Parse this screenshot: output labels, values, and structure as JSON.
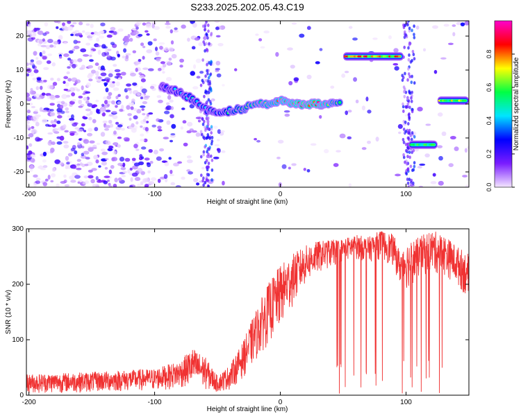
{
  "title": "S233.2025.202.05.43.C19",
  "chart_data": [
    {
      "type": "heatmap",
      "xlabel": "Height of straight line (km)",
      "ylabel": "Frequency (Hz)",
      "xlim": [
        -202,
        150
      ],
      "ylim": [
        -24.5,
        24.5
      ],
      "x_ticks": [
        -200,
        -100,
        0,
        100
      ],
      "y_ticks": [
        -20,
        -10,
        0,
        10,
        20
      ],
      "colorbar": {
        "label": "Normalized spectral amplitude",
        "ticks": [
          "0.0",
          "0.2",
          "0.4",
          "0.6",
          "0.8"
        ],
        "range": [
          0,
          1
        ],
        "colors": [
          "#f4e6ff",
          "#7a1cff",
          "#0000ff",
          "#00e5ff",
          "#00ff44",
          "#ffff00",
          "#ff0000",
          "#ff00cc"
        ]
      },
      "ridge": [
        {
          "x": -95,
          "y": 5,
          "v": 0.3
        },
        {
          "x": -88,
          "y": 4.5,
          "v": 0.35
        },
        {
          "x": -80,
          "y": 3.5,
          "v": 0.4
        },
        {
          "x": -70,
          "y": 1.5,
          "v": 0.45
        },
        {
          "x": -60,
          "y": -1.5,
          "v": 0.4
        },
        {
          "x": -50,
          "y": -3,
          "v": 0.45
        },
        {
          "x": -40,
          "y": -2,
          "v": 0.55
        },
        {
          "x": -30,
          "y": -1.5,
          "v": 0.6
        },
        {
          "x": -20,
          "y": 0,
          "v": 0.65
        },
        {
          "x": -10,
          "y": 0,
          "v": 0.7
        },
        {
          "x": 0,
          "y": 1,
          "v": 0.75
        },
        {
          "x": 10,
          "y": 0,
          "v": 0.8
        },
        {
          "x": 20,
          "y": 0,
          "v": 0.85
        },
        {
          "x": 30,
          "y": 0,
          "v": 0.85
        },
        {
          "x": 40,
          "y": 0,
          "v": 0.7
        },
        {
          "x": 48,
          "y": 0,
          "v": 0.6
        }
      ],
      "segments": [
        {
          "x0": 50,
          "x1": 98,
          "y": 14,
          "v": 0.8
        },
        {
          "x0": 102,
          "x1": 125,
          "y": -12,
          "v": 0.55
        },
        {
          "x0": 125,
          "x1": 150,
          "y": 1,
          "v": 0.65
        }
      ]
    },
    {
      "type": "line",
      "xlabel": "Height of straight line (km)",
      "ylabel": "SNR (10 * v/v)",
      "xlim": [
        -202,
        150
      ],
      "ylim": [
        0,
        300
      ],
      "x_ticks": [
        -200,
        -100,
        0,
        100
      ],
      "y_ticks": [
        0,
        100,
        200,
        300
      ],
      "color": "#f03232",
      "envelope": {
        "x": [
          -202,
          -150,
          -100,
          -80,
          -70,
          -60,
          -50,
          -40,
          -30,
          -20,
          -10,
          0,
          10,
          20,
          30,
          40,
          50,
          60,
          70,
          80,
          90,
          95,
          100,
          110,
          120,
          130,
          140,
          150
        ],
        "low": [
          3,
          5,
          8,
          12,
          15,
          10,
          5,
          10,
          30,
          60,
          90,
          120,
          160,
          200,
          220,
          230,
          240,
          245,
          240,
          245,
          230,
          200,
          190,
          210,
          220,
          215,
          200,
          170
        ],
        "high": [
          38,
          42,
          48,
          62,
          85,
          70,
          35,
          55,
          95,
          150,
          200,
          235,
          255,
          270,
          278,
          280,
          282,
          290,
          285,
          298,
          290,
          260,
          275,
          285,
          298,
          290,
          270,
          255
        ]
      },
      "dropouts_x_range": [
        38,
        148
      ]
    }
  ]
}
